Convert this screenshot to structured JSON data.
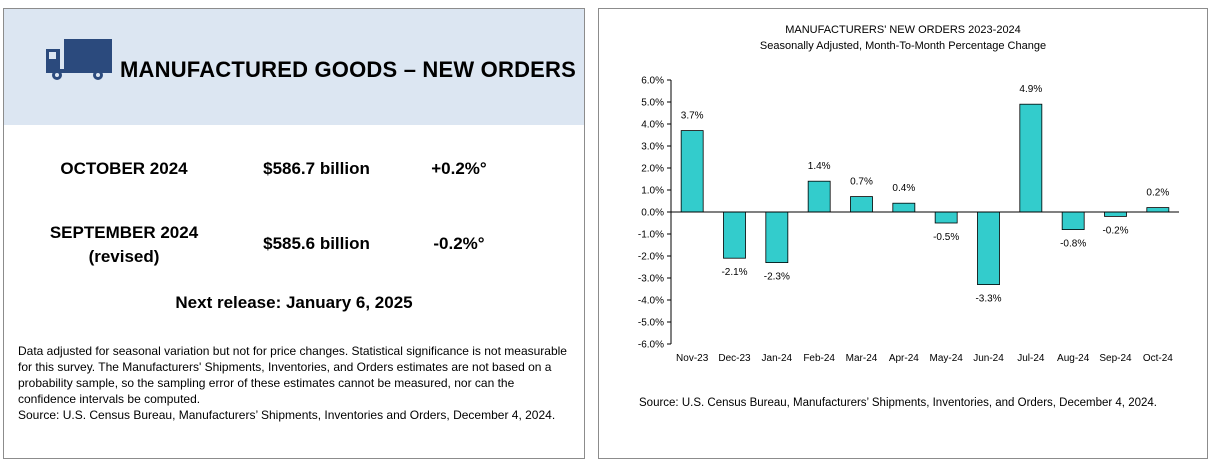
{
  "summary": {
    "title": "MANUFACTURED GOODS – NEW ORDERS",
    "rows": [
      {
        "label_line1": "OCTOBER 2024",
        "label_line2": "",
        "value": "$586.7 billion",
        "change": "+0.2%°"
      },
      {
        "label_line1": "SEPTEMBER 2024",
        "label_line2": "(revised)",
        "value": "$585.6 billion",
        "change": "-0.2%°"
      }
    ],
    "next_release": "Next release: January 6, 2025",
    "footnote_line1": "Data adjusted for seasonal variation but not for price changes. Statistical significance is not measurable for this survey.  The Manufacturers' Shipments, Inventories, and Orders estimates are not based on a probability sample, so the sampling error of these estimates cannot be measured, nor can the confidence intervals be computed.",
    "footnote_line2": "Source: U.S. Census Bureau, Manufacturers’ Shipments, Inventories and Orders, December 4, 2024.",
    "header_color": "#dce6f2",
    "icon": "truck-icon",
    "icon_color": "#2b4a7d"
  },
  "chart_data": {
    "type": "bar",
    "title": "MANUFACTURERS' NEW ORDERS 2023-2024",
    "subtitle": "Seasonally Adjusted,  Month-To-Month Percentage Change",
    "categories": [
      "Nov-23",
      "Dec-23",
      "Jan-24",
      "Feb-24",
      "Mar-24",
      "Apr-24",
      "May-24",
      "Jun-24",
      "Jul-24",
      "Aug-24",
      "Sep-24",
      "Oct-24"
    ],
    "values": [
      3.7,
      -2.1,
      -2.3,
      1.4,
      0.7,
      0.4,
      -0.5,
      -3.3,
      4.9,
      -0.8,
      -0.2,
      0.2
    ],
    "data_labels": [
      "3.7%",
      "-2.1%",
      "-2.3%",
      "1.4%",
      "0.7%",
      "0.4%",
      "-0.5%",
      "-3.3%",
      "4.9%",
      "-0.8%",
      "-0.2%",
      "0.2%"
    ],
    "yticks": [
      6,
      5,
      4,
      3,
      2,
      1,
      0,
      -1,
      -2,
      -3,
      -4,
      -5,
      -6
    ],
    "ytick_labels": [
      "6.0%",
      "5.0%",
      "4.0%",
      "3.0%",
      "2.0%",
      "1.0%",
      "0.0%",
      "-1.0%",
      "-2.0%",
      "-3.0%",
      "-4.0%",
      "-5.0%",
      "-6.0%"
    ],
    "ylim": [
      -6,
      6
    ],
    "xlabel": "",
    "ylabel": "",
    "grid": false,
    "bar_color": "#33cccc",
    "source": "Source: U.S. Census Bureau, Manufacturers’ Shipments, Inventories, and Orders, December 4, 2024."
  }
}
